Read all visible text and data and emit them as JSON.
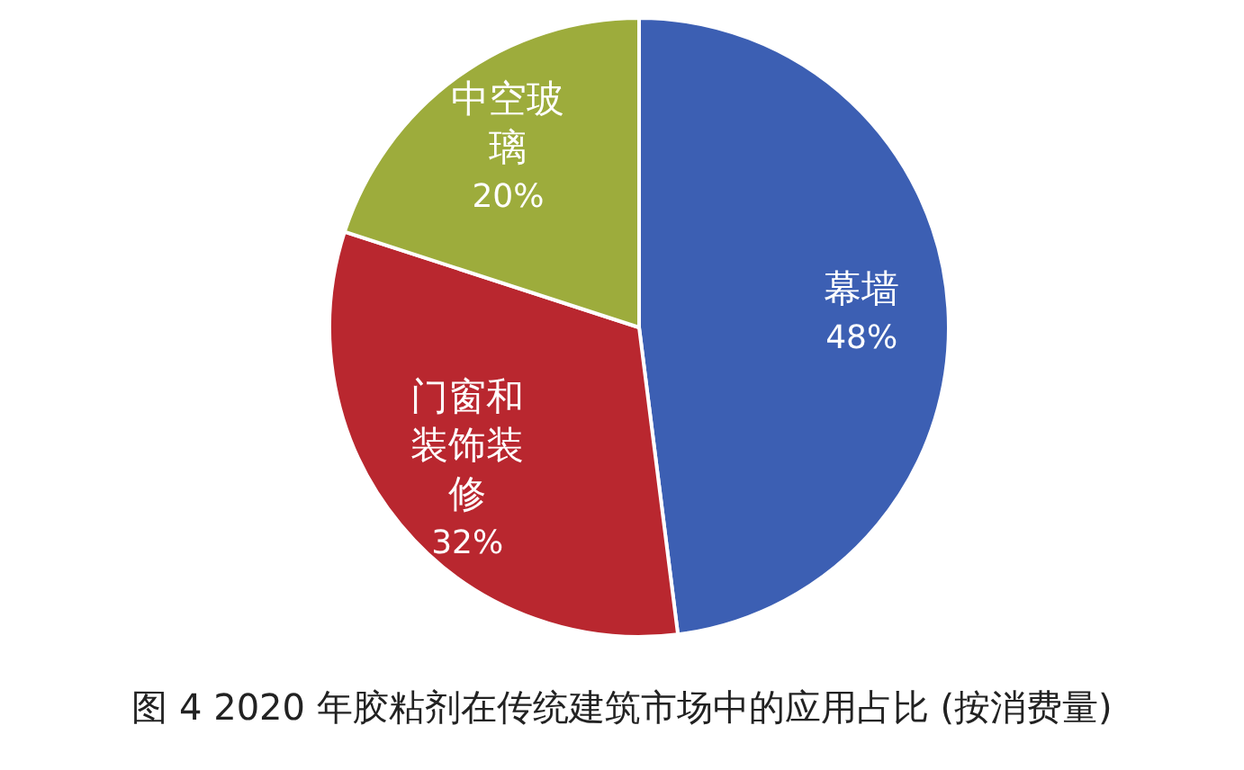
{
  "chart_data": {
    "type": "pie",
    "title": "图 4  2020 年胶粘剂在传统建筑市场中的应用占比 (按消费量)",
    "categories": [
      "幕墙",
      "门窗和装饰装修",
      "中空玻璃"
    ],
    "values": [
      48,
      32,
      20
    ],
    "value_labels": [
      "48%",
      "32%",
      "20%"
    ],
    "colors": [
      "#3c5fb3",
      "#b9272f",
      "#9dac3c"
    ],
    "legend": false
  }
}
